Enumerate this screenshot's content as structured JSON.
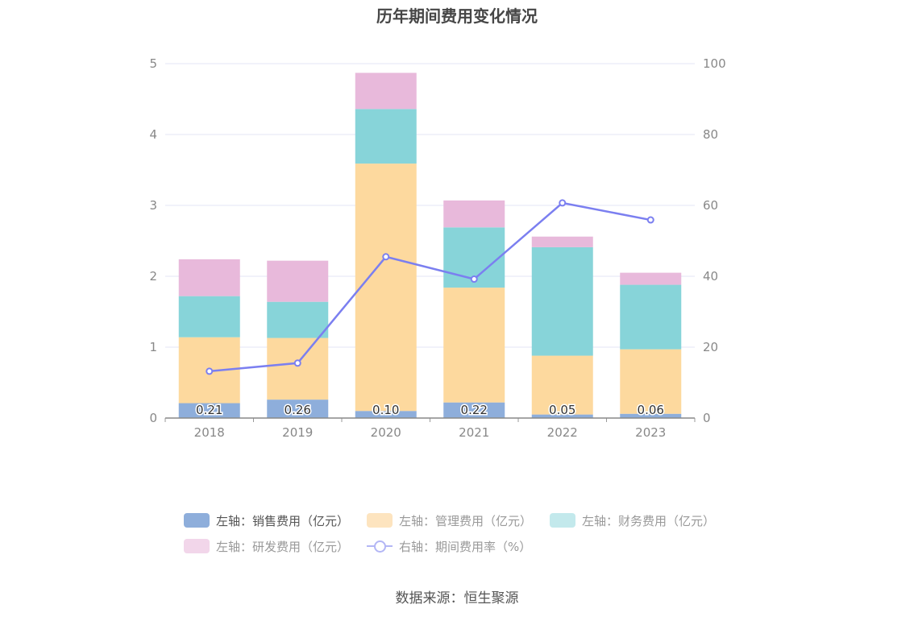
{
  "title": "历年期间费用变化情况",
  "source": "数据来源：恒生聚源",
  "legend": [
    {
      "label": "左轴：销售费用（亿元）",
      "color": "#8eaedb",
      "kind": "bar"
    },
    {
      "label": "左轴：管理费用（亿元）",
      "color": "#fde4bf",
      "kind": "bar"
    },
    {
      "label": "左轴：财务费用（亿元）",
      "color": "#c3e9ec",
      "kind": "bar"
    },
    {
      "label": "左轴：研发费用（亿元）",
      "color": "#f2d6ea",
      "kind": "bar"
    },
    {
      "label": "右轴：期间费用率（%）",
      "color": "#b3b6f5",
      "kind": "line"
    }
  ],
  "chart_data": {
    "type": "bar",
    "stacked": true,
    "categories": [
      "2018",
      "2019",
      "2020",
      "2021",
      "2022",
      "2023"
    ],
    "series": [
      {
        "name": "左轴：销售费用（亿元）",
        "color": "#8eaedb",
        "axis": "left",
        "values": [
          0.21,
          0.26,
          0.1,
          0.22,
          0.05,
          0.06
        ],
        "labels": [
          "0.21",
          "0.26",
          "0.10",
          "0.22",
          "0.05",
          "0.06"
        ]
      },
      {
        "name": "左轴：管理费用（亿元）",
        "color": "#fdd99e",
        "axis": "left",
        "values": [
          0.93,
          0.87,
          3.49,
          1.62,
          0.83,
          0.91
        ]
      },
      {
        "name": "左轴：财务费用（亿元）",
        "color": "#87d4d9",
        "axis": "left",
        "values": [
          0.58,
          0.51,
          0.77,
          0.85,
          1.53,
          0.91
        ]
      },
      {
        "name": "左轴：研发费用（亿元）",
        "color": "#e8b9db",
        "axis": "left",
        "values": [
          0.52,
          0.58,
          0.51,
          0.38,
          0.15,
          0.17
        ]
      },
      {
        "name": "右轴：期间费用率（%）",
        "type": "line",
        "color": "#7b7ff0",
        "axis": "right",
        "values": [
          13.2,
          15.5,
          45.5,
          39.2,
          60.7,
          55.9
        ]
      }
    ],
    "y_left": {
      "min": 0,
      "max": 5,
      "ticks": [
        "0",
        "1",
        "2",
        "3",
        "4",
        "5"
      ]
    },
    "y_right": {
      "min": 0,
      "max": 100,
      "ticks": [
        "0",
        "20",
        "40",
        "60",
        "80",
        "100"
      ]
    },
    "grid": true,
    "legend_position": "bottom"
  }
}
